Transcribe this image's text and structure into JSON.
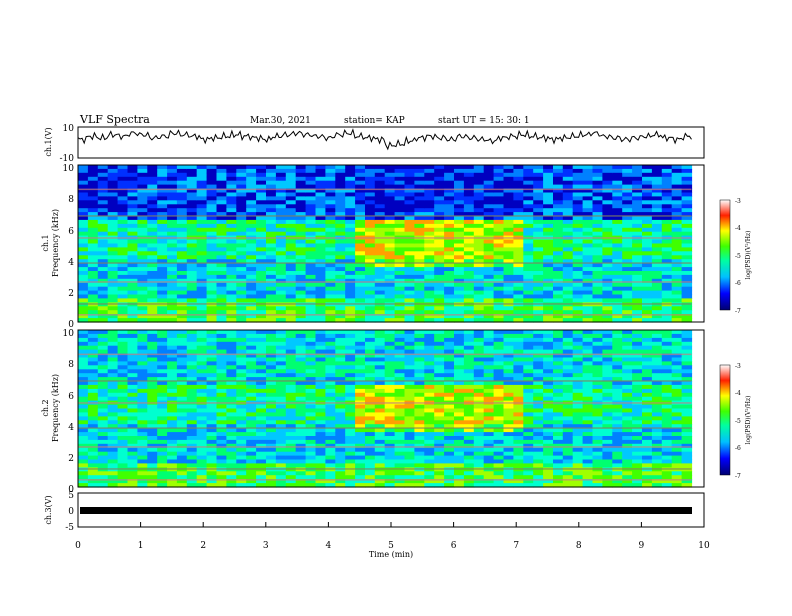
{
  "header": {
    "title": "VLF Spectra",
    "date": "Mar.30, 2021",
    "station": "station= KAP",
    "start_time": "start  UT =   15: 30: 1"
  },
  "chart_data": [
    {
      "type": "line",
      "panel": "ch1-waveform",
      "ylabel": "ch.1(V)",
      "ylim": [
        -10,
        10
      ],
      "y_ticks": [
        "10",
        "-10"
      ],
      "xlim": [
        0,
        10
      ],
      "series": [
        {
          "values": [
            2,
            4,
            3,
            5,
            4,
            6,
            5,
            3,
            4,
            6,
            5,
            4,
            2,
            3,
            4,
            5,
            4,
            3,
            2,
            4,
            5,
            6,
            5,
            4,
            3,
            5,
            6,
            4,
            3,
            2,
            -2,
            -1,
            1,
            3,
            4,
            3,
            2,
            4,
            3,
            2,
            1,
            3,
            4,
            5,
            4,
            3,
            2,
            3,
            4,
            5,
            6,
            4,
            3,
            2,
            3,
            4,
            5,
            3,
            2,
            4
          ]
        }
      ]
    },
    {
      "type": "heatmap",
      "panel": "ch1-spectrogram",
      "ylabel": "Frequency (kHz)",
      "channel_label": "ch.1",
      "ylim": [
        0,
        10
      ],
      "y_ticks": [
        "10",
        "8",
        "6",
        "4",
        "2",
        "0"
      ],
      "xlim": [
        0,
        10
      ],
      "colorbar": {
        "label": "log(PSD)(V²/Hz)",
        "range": [
          -7,
          -3
        ],
        "ticks": [
          "-3",
          "-4",
          "-5",
          "-6",
          "-7"
        ]
      }
    },
    {
      "type": "heatmap",
      "panel": "ch2-spectrogram",
      "ylabel": "Frequency (kHz)",
      "channel_label": "ch.2",
      "ylim": [
        0,
        10
      ],
      "y_ticks": [
        "10",
        "8",
        "6",
        "4",
        "2",
        "0"
      ],
      "xlim": [
        0,
        10
      ],
      "colorbar": {
        "label": "log(PSD)(V²/Hz)",
        "range": [
          -7,
          -3
        ],
        "ticks": [
          "-3",
          "-4",
          "-5",
          "-6",
          "-7"
        ]
      }
    },
    {
      "type": "line",
      "panel": "ch3-waveform",
      "ylabel": "ch.3(V)",
      "ylim": [
        -5,
        5
      ],
      "y_ticks": [
        "5",
        "0",
        "-5"
      ],
      "xlim": [
        0,
        10
      ],
      "x_ticks": [
        "0",
        "1",
        "2",
        "3",
        "4",
        "5",
        "6",
        "7",
        "8",
        "9",
        "10"
      ],
      "xlabel": "Time  (min)",
      "series": [
        {
          "values": [
            0,
            0
          ]
        }
      ]
    }
  ]
}
